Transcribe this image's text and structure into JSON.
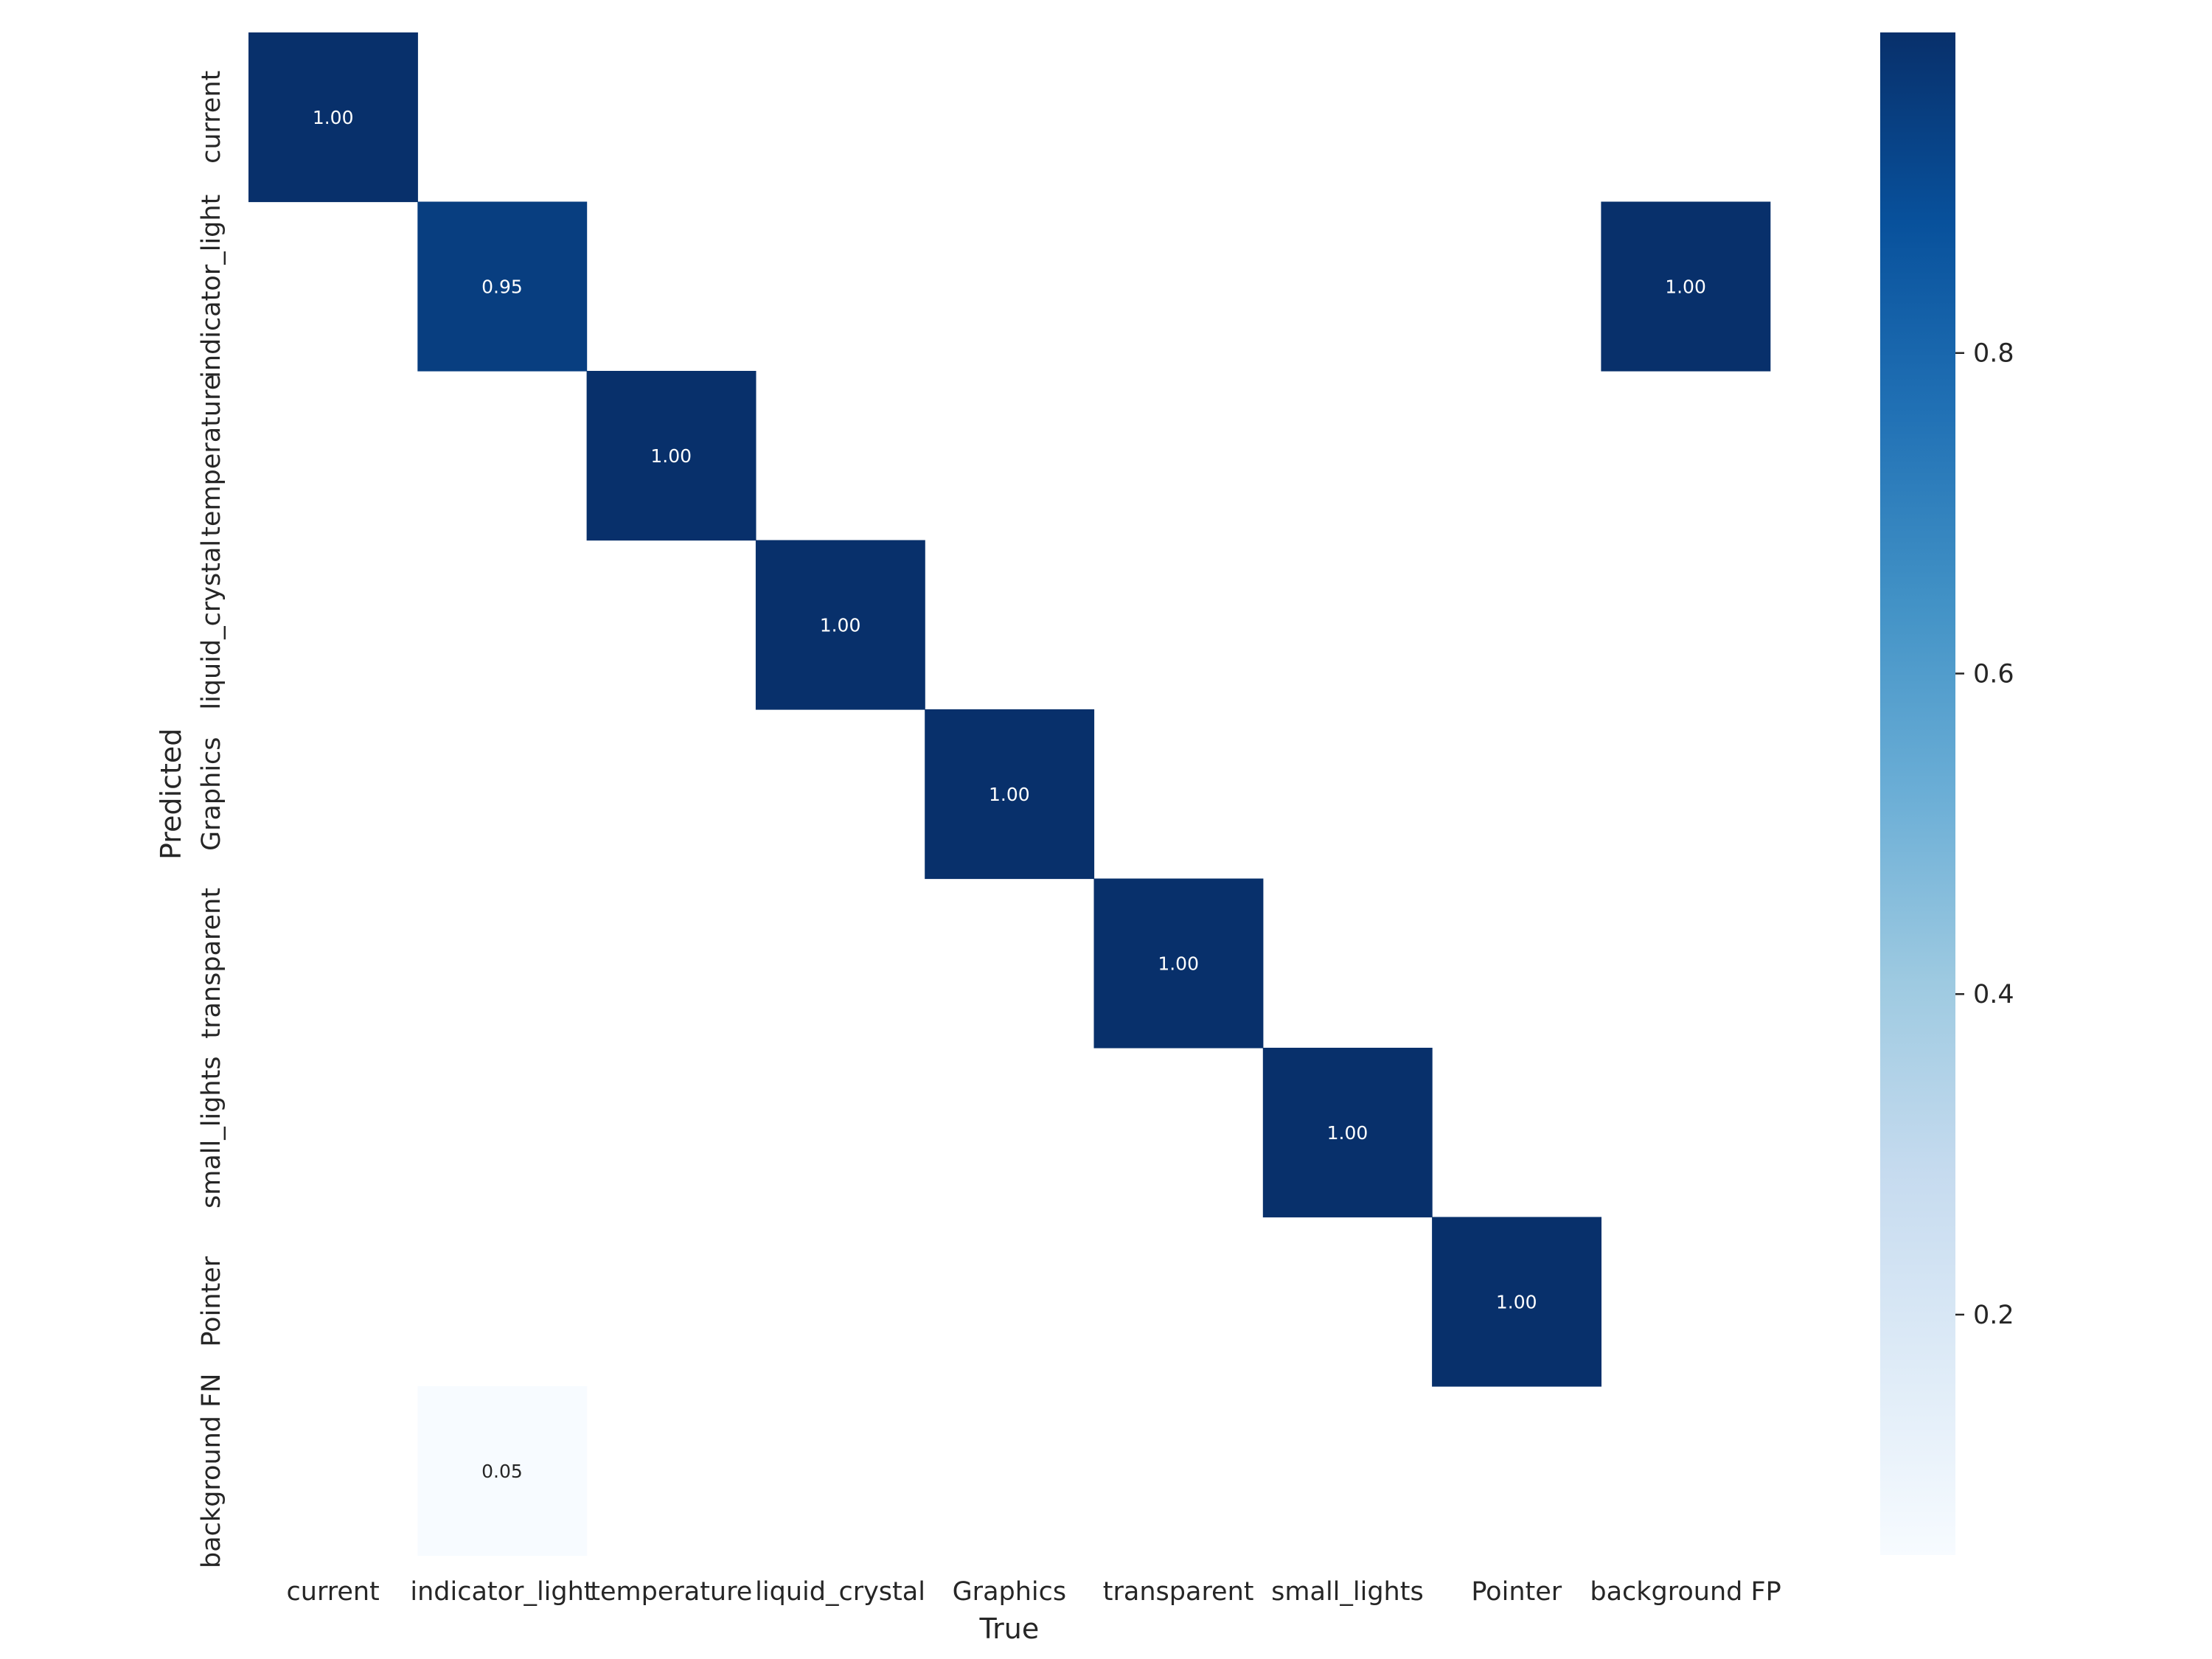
{
  "chart_data": {
    "type": "heatmap",
    "xlabel": "True",
    "ylabel": "Predicted",
    "x_categories": [
      "current",
      "indicator_light",
      "temperature",
      "liquid_crystal",
      "Graphics",
      "transparent",
      "small_lights",
      "Pointer",
      "background FP"
    ],
    "y_categories": [
      "current",
      "indicator_light",
      "temperature",
      "liquid_crystal",
      "Graphics",
      "transparent",
      "small_lights",
      "Pointer",
      "background FN"
    ],
    "cells": [
      {
        "row": 0,
        "col": 0,
        "value": 1.0,
        "label": "1.00"
      },
      {
        "row": 1,
        "col": 1,
        "value": 0.95,
        "label": "0.95"
      },
      {
        "row": 1,
        "col": 8,
        "value": 1.0,
        "label": "1.00"
      },
      {
        "row": 2,
        "col": 2,
        "value": 1.0,
        "label": "1.00"
      },
      {
        "row": 3,
        "col": 3,
        "value": 1.0,
        "label": "1.00"
      },
      {
        "row": 4,
        "col": 4,
        "value": 1.0,
        "label": "1.00"
      },
      {
        "row": 5,
        "col": 5,
        "value": 1.0,
        "label": "1.00"
      },
      {
        "row": 6,
        "col": 6,
        "value": 1.0,
        "label": "1.00"
      },
      {
        "row": 7,
        "col": 7,
        "value": 1.0,
        "label": "1.00"
      },
      {
        "row": 8,
        "col": 1,
        "value": 0.05,
        "label": "0.05"
      }
    ],
    "empty_cells": "blank (zero values masked)",
    "colormap": "Blues",
    "colorbar": {
      "vmin": 0.05,
      "vmax": 1.0,
      "ticks": [
        0.2,
        0.4,
        0.6,
        0.8
      ],
      "tick_labels": [
        "0.2",
        "0.4",
        "0.6",
        "0.8"
      ]
    },
    "colormap_stops": [
      "#f7fbff",
      "#deebf7",
      "#c6dbef",
      "#9ecae1",
      "#6baed6",
      "#4292c6",
      "#2171b5",
      "#08519c",
      "#08306b"
    ]
  }
}
